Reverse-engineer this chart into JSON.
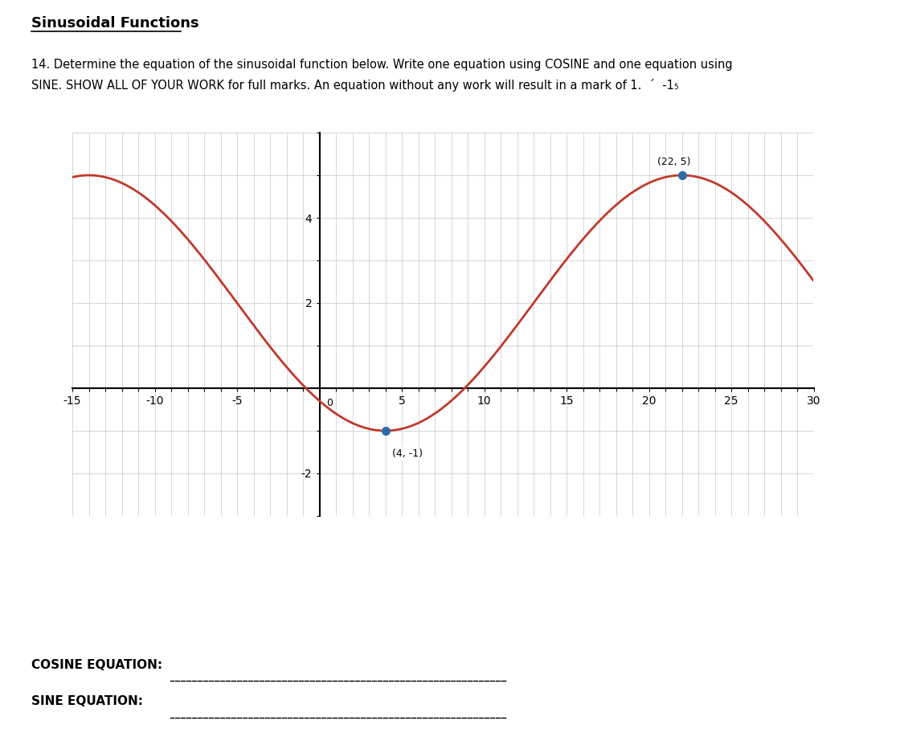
{
  "title": "Sinusoidal Functions",
  "question_text_line1": "14. Determine the equation of the sinusoidal function below. Write one equation using COSINE and one equation using",
  "question_text_line2": "SINE. SHOW ALL OF YOUR WORK for full marks. An equation without any work will result in a mark of 1.  ´  -1₅",
  "cosine_label": "COSINE EQUATION:",
  "sine_label": "SINE EQUATION:",
  "curve_color": "#c0392b",
  "dot_color": "#2e6da4",
  "point1": [
    4,
    -1
  ],
  "point2": [
    22,
    5
  ],
  "xmin": -15,
  "xmax": 30,
  "ymin": -3,
  "ymax": 6,
  "xticks": [
    -15,
    -10,
    -5,
    5,
    10,
    15,
    20,
    25,
    30
  ],
  "yticks": [
    -2,
    2,
    4
  ],
  "amplitude": 3,
  "vertical_shift": 2,
  "background_color": "#ffffff",
  "grid_color": "#c8c8c8",
  "axis_color": "#000000",
  "font_color": "#000000",
  "curve_linewidth": 2.0
}
